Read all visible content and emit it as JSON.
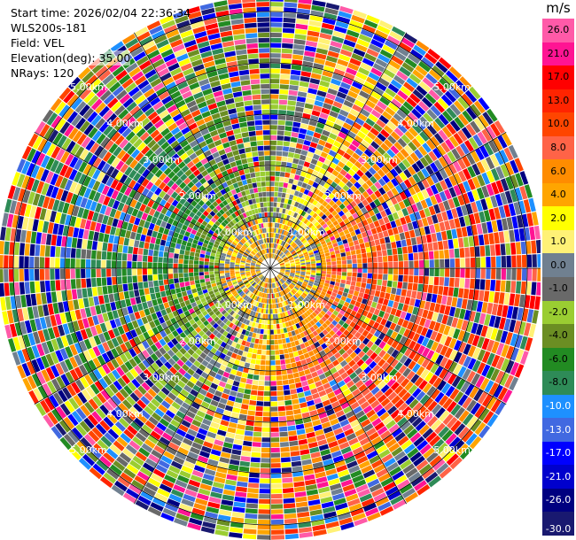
{
  "header": {
    "start_time": "Start time: 2026/02/04 22:36:34",
    "instrument": "WLS200s-181",
    "field": "Field: VEL",
    "elevation": "Elevation(deg): 35.00",
    "nrays": "NRays: 120"
  },
  "chart_data": {
    "type": "heatmap",
    "projection": "polar-ppi",
    "n_rays": 120,
    "max_range_km": 5.3,
    "range_rings_km": [
      1,
      2,
      3,
      4,
      5
    ],
    "ring_labels": [
      "1.00km",
      "2.00km",
      "3.00km",
      "4.00km",
      "5.00km"
    ],
    "spokes": 12,
    "colorbar": {
      "unit": "m/s",
      "ticks": [
        "26.0",
        "21.0",
        "17.0",
        "13.0",
        "10.0",
        "8.0",
        "6.0",
        "4.0",
        "2.0",
        "1.0",
        "0.0",
        "-1.0",
        "-2.0",
        "-4.0",
        "-6.0",
        "-8.0",
        "-10.0",
        "-13.0",
        "-17.0",
        "-21.0",
        "-26.0",
        "-30.0"
      ],
      "colors": [
        "#ff5aa8",
        "#ff1493",
        "#ff0000",
        "#ff2400",
        "#ff4500",
        "#ff6347",
        "#ff8c00",
        "#ffa500",
        "#ffff00",
        "#fff176",
        "#708090",
        "#696969",
        "#9acd32",
        "#6b8e23",
        "#228b22",
        "#2e8b57",
        "#1e90ff",
        "#4169e1",
        "#0000ff",
        "#0000cd",
        "#000080",
        "#191970"
      ]
    }
  }
}
